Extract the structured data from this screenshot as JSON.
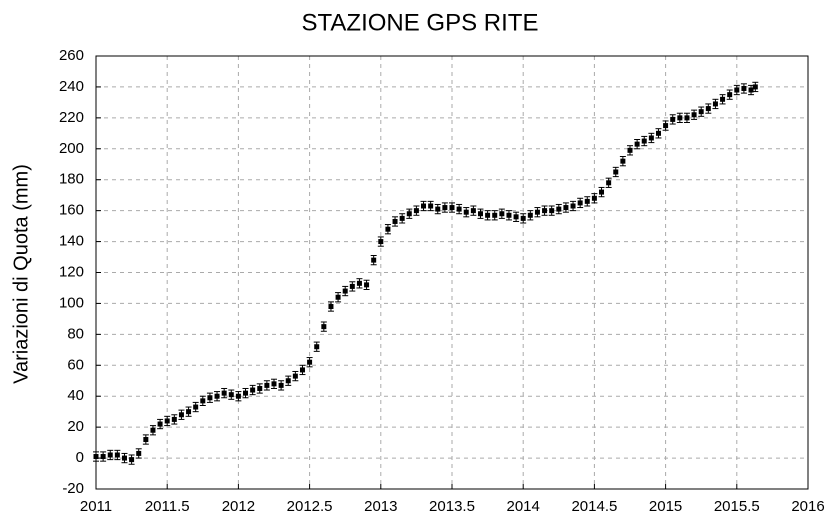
{
  "chart_data": {
    "type": "scatter",
    "title": "STAZIONE GPS RITE",
    "y_label": "Variazioni di Quota (mm)",
    "x": [
      2011.0,
      2011.05,
      2011.1,
      2011.15,
      2011.2,
      2011.25,
      2011.3,
      2011.35,
      2011.4,
      2011.45,
      2011.5,
      2011.55,
      2011.6,
      2011.65,
      2011.7,
      2011.75,
      2011.8,
      2011.85,
      2011.9,
      2011.95,
      2012.0,
      2012.05,
      2012.1,
      2012.15,
      2012.2,
      2012.25,
      2012.3,
      2012.35,
      2012.4,
      2012.45,
      2012.5,
      2012.55,
      2012.6,
      2012.65,
      2012.7,
      2012.75,
      2012.8,
      2012.85,
      2012.9,
      2012.95,
      2013.0,
      2013.05,
      2013.1,
      2013.15,
      2013.2,
      2013.25,
      2013.3,
      2013.35,
      2013.4,
      2013.45,
      2013.5,
      2013.55,
      2013.6,
      2013.65,
      2013.7,
      2013.75,
      2013.8,
      2013.85,
      2013.9,
      2013.95,
      2014.0,
      2014.05,
      2014.1,
      2014.15,
      2014.2,
      2014.25,
      2014.3,
      2014.35,
      2014.4,
      2014.45,
      2014.5,
      2014.55,
      2014.6,
      2014.65,
      2014.7,
      2014.75,
      2014.8,
      2014.85,
      2014.9,
      2014.95,
      2015.0,
      2015.05,
      2015.1,
      2015.15,
      2015.2,
      2015.25,
      2015.3,
      2015.35,
      2015.4,
      2015.45,
      2015.5,
      2015.55,
      2015.6,
      2015.63
    ],
    "values": [
      1,
      1,
      2,
      2,
      0,
      -1,
      3,
      12,
      18,
      22,
      24,
      25,
      28,
      30,
      33,
      37,
      39,
      40,
      42,
      41,
      40,
      42,
      44,
      45,
      47,
      48,
      47,
      50,
      53,
      57,
      62,
      72,
      85,
      98,
      104,
      108,
      111,
      113,
      112,
      128,
      140,
      148,
      153,
      155,
      158,
      160,
      163,
      163,
      161,
      162,
      162,
      161,
      159,
      160,
      158,
      157,
      157,
      158,
      157,
      156,
      155,
      157,
      159,
      160,
      160,
      161,
      162,
      163,
      165,
      166,
      168,
      172,
      178,
      185,
      192,
      199,
      203,
      205,
      207,
      210,
      215,
      219,
      220,
      220,
      222,
      224,
      226,
      229,
      232,
      235,
      238,
      239,
      238,
      240
    ],
    "error": 3,
    "color": "#000000",
    "xlim": [
      2011,
      2016
    ],
    "xticks": [
      2011,
      2011.5,
      2012,
      2012.5,
      2013,
      2013.5,
      2014,
      2014.5,
      2015,
      2015.5,
      2016
    ],
    "ylim": [
      -20,
      260
    ],
    "yticks": [
      -20,
      0,
      20,
      40,
      60,
      80,
      100,
      120,
      140,
      160,
      180,
      200,
      220,
      240,
      260
    ],
    "grid": true
  }
}
